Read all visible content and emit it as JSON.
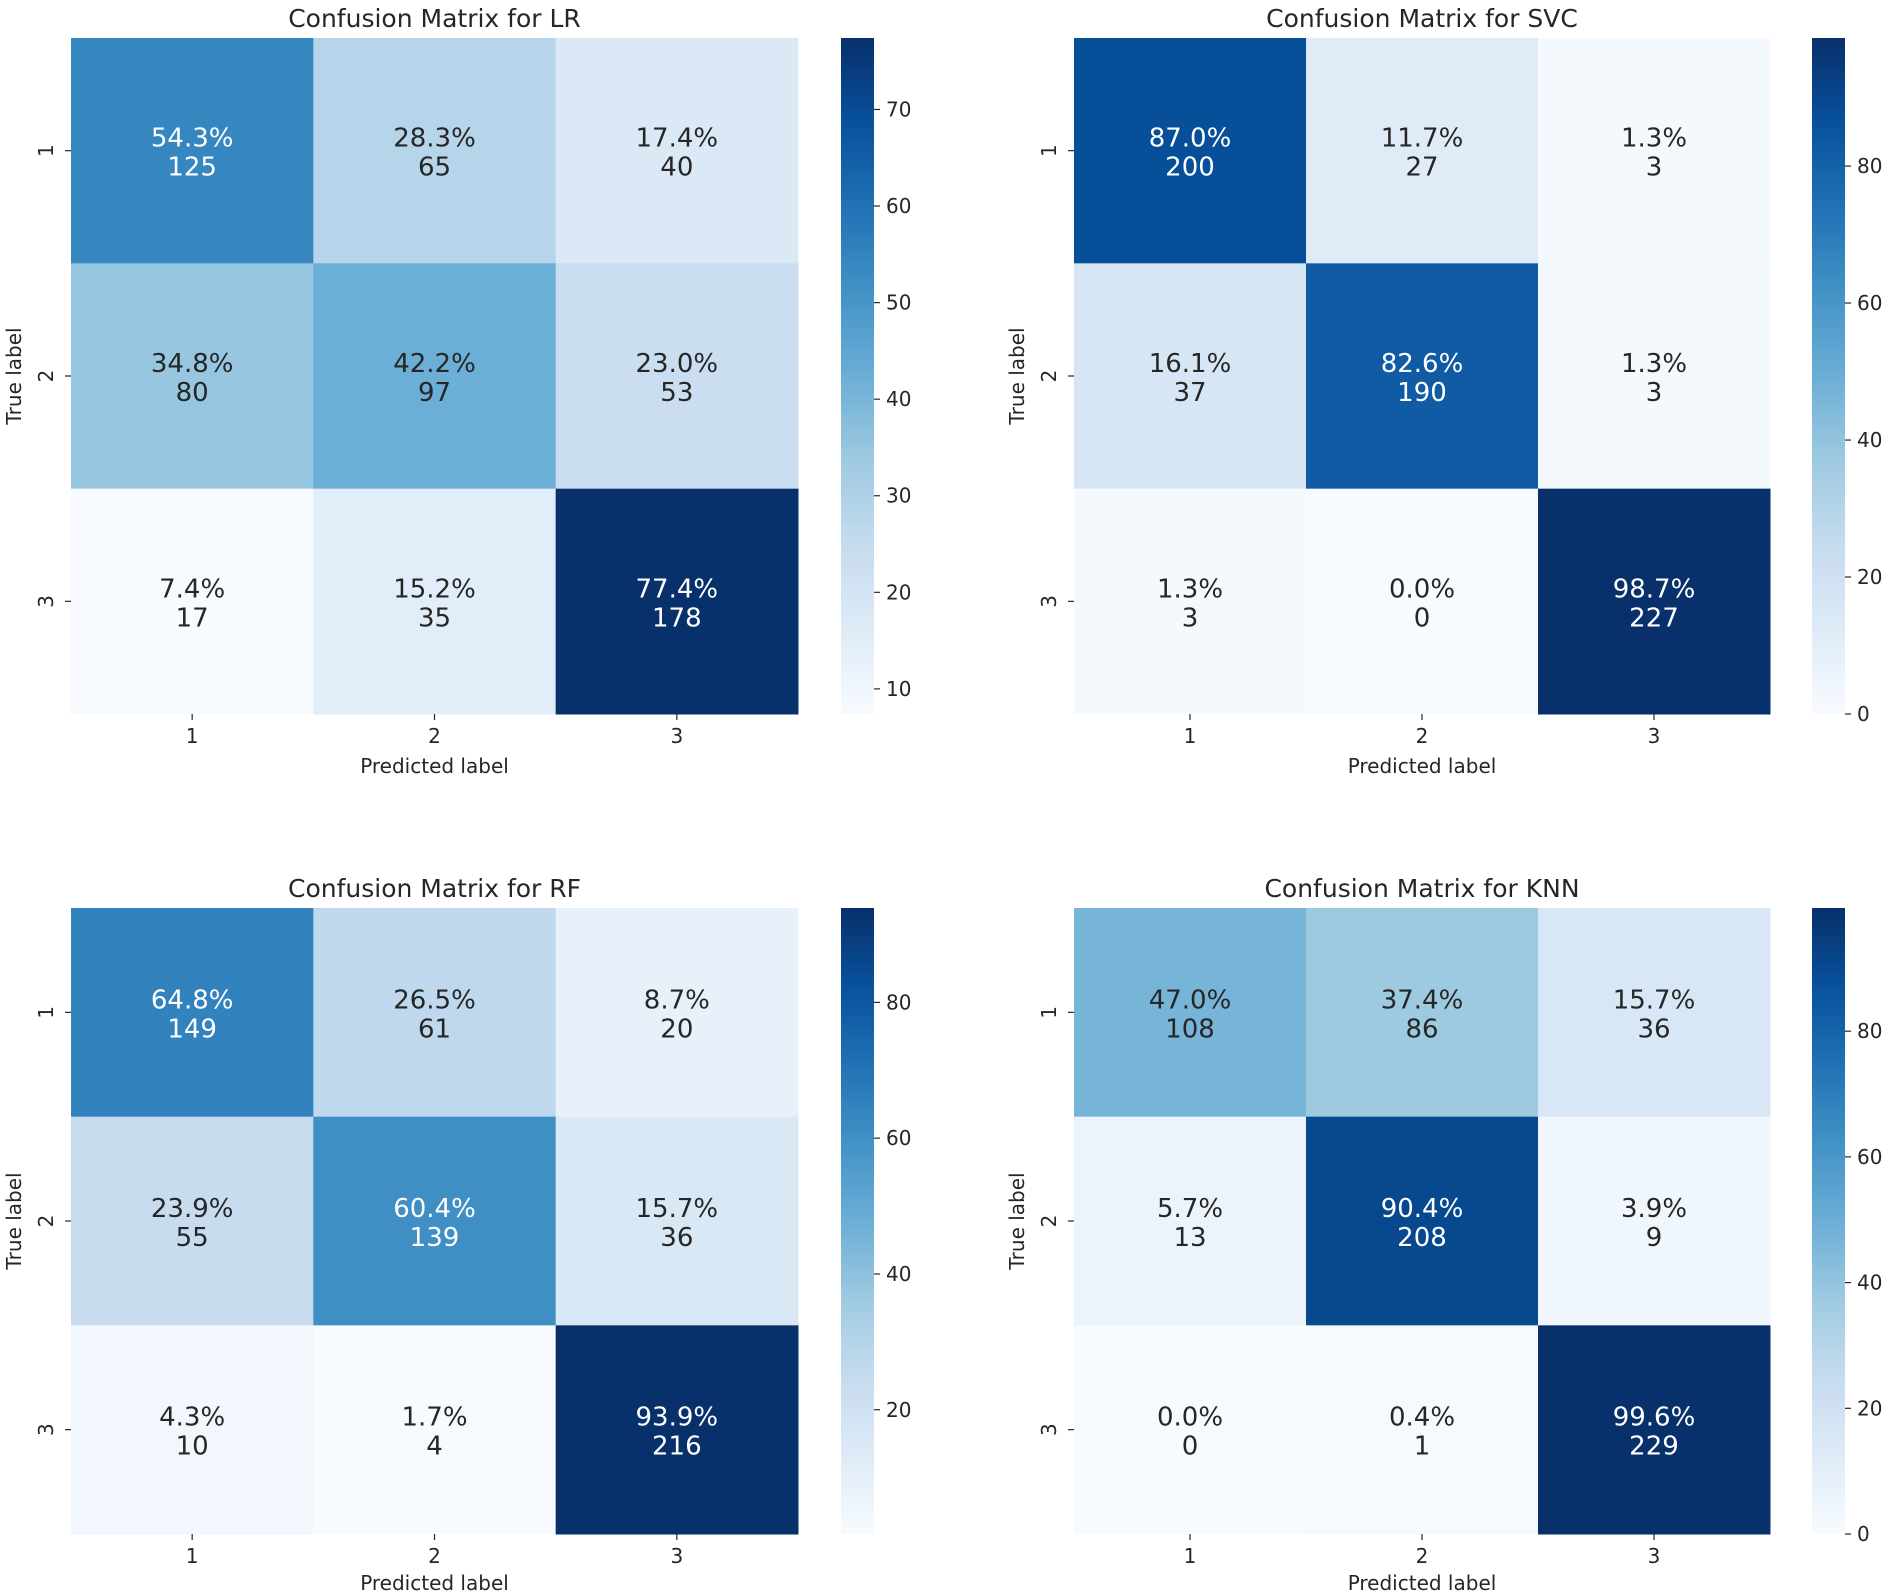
{
  "chart_data": [
    {
      "type": "heatmap",
      "title": "Confusion Matrix for LR",
      "xlabel": "Predicted label",
      "ylabel": "True label",
      "x_ticklabels": [
        "1",
        "2",
        "3"
      ],
      "y_ticklabels": [
        "1",
        "2",
        "3"
      ],
      "percent": [
        [
          54.3,
          28.3,
          17.4
        ],
        [
          34.8,
          42.2,
          23.0
        ],
        [
          7.4,
          15.2,
          77.4
        ]
      ],
      "counts": [
        [
          125,
          65,
          40
        ],
        [
          80,
          97,
          53
        ],
        [
          17,
          35,
          178
        ]
      ],
      "labels": [
        [
          "54.3%",
          "28.3%",
          "17.4%"
        ],
        [
          "34.8%",
          "42.2%",
          "23.0%"
        ],
        [
          "7.4%",
          "15.2%",
          "77.4%"
        ]
      ],
      "count_labels": [
        [
          "125",
          "65",
          "40"
        ],
        [
          "80",
          "97",
          "53"
        ],
        [
          "17",
          "35",
          "178"
        ]
      ],
      "colorbar_range": [
        7.4,
        77.4
      ],
      "colorbar_ticks": [
        10,
        20,
        30,
        40,
        50,
        60,
        70
      ],
      "colorbar_ticklabels": [
        "10",
        "20",
        "30",
        "40",
        "50",
        "60",
        "70"
      ],
      "colormap": "Blues"
    },
    {
      "type": "heatmap",
      "title": "Confusion Matrix for SVC",
      "xlabel": "Predicted label",
      "ylabel": "True label",
      "x_ticklabels": [
        "1",
        "2",
        "3"
      ],
      "y_ticklabels": [
        "1",
        "2",
        "3"
      ],
      "percent": [
        [
          87.0,
          11.7,
          1.3
        ],
        [
          16.1,
          82.6,
          1.3
        ],
        [
          1.3,
          0.0,
          98.7
        ]
      ],
      "counts": [
        [
          200,
          27,
          3
        ],
        [
          37,
          190,
          3
        ],
        [
          3,
          0,
          227
        ]
      ],
      "labels": [
        [
          "87.0%",
          "11.7%",
          "1.3%"
        ],
        [
          "16.1%",
          "82.6%",
          "1.3%"
        ],
        [
          "1.3%",
          "0.0%",
          "98.7%"
        ]
      ],
      "count_labels": [
        [
          "200",
          "27",
          "3"
        ],
        [
          "37",
          "190",
          "3"
        ],
        [
          "3",
          "0",
          "227"
        ]
      ],
      "colorbar_range": [
        0,
        98.7
      ],
      "colorbar_ticks": [
        0,
        20,
        40,
        60,
        80
      ],
      "colorbar_ticklabels": [
        "0",
        "20",
        "40",
        "60",
        "80"
      ],
      "colormap": "Blues"
    },
    {
      "type": "heatmap",
      "title": "Confusion Matrix for RF",
      "xlabel": "Predicted label",
      "ylabel": "True label",
      "x_ticklabels": [
        "1",
        "2",
        "3"
      ],
      "y_ticklabels": [
        "1",
        "2",
        "3"
      ],
      "percent": [
        [
          64.8,
          26.5,
          8.7
        ],
        [
          23.9,
          60.4,
          15.7
        ],
        [
          4.3,
          1.7,
          93.9
        ]
      ],
      "counts": [
        [
          149,
          61,
          20
        ],
        [
          55,
          139,
          36
        ],
        [
          10,
          4,
          216
        ]
      ],
      "labels": [
        [
          "64.8%",
          "26.5%",
          "8.7%"
        ],
        [
          "23.9%",
          "60.4%",
          "15.7%"
        ],
        [
          "4.3%",
          "1.7%",
          "93.9%"
        ]
      ],
      "count_labels": [
        [
          "149",
          "61",
          "20"
        ],
        [
          "55",
          "139",
          "36"
        ],
        [
          "10",
          "4",
          "216"
        ]
      ],
      "colorbar_range": [
        1.7,
        93.9
      ],
      "colorbar_ticks": [
        20,
        40,
        60,
        80
      ],
      "colorbar_ticklabels": [
        "20",
        "40",
        "60",
        "80"
      ],
      "colormap": "Blues"
    },
    {
      "type": "heatmap",
      "title": "Confusion Matrix for KNN",
      "xlabel": "Predicted label",
      "ylabel": "True label",
      "x_ticklabels": [
        "1",
        "2",
        "3"
      ],
      "y_ticklabels": [
        "1",
        "2",
        "3"
      ],
      "percent": [
        [
          47.0,
          37.4,
          15.7
        ],
        [
          5.7,
          90.4,
          3.9
        ],
        [
          0.0,
          0.4,
          99.6
        ]
      ],
      "counts": [
        [
          108,
          86,
          36
        ],
        [
          13,
          208,
          9
        ],
        [
          0,
          1,
          229
        ]
      ],
      "labels": [
        [
          "47.0%",
          "37.4%",
          "15.7%"
        ],
        [
          "5.7%",
          "90.4%",
          "3.9%"
        ],
        [
          "0.0%",
          "0.4%",
          "99.6%"
        ]
      ],
      "count_labels": [
        [
          "108",
          "86",
          "36"
        ],
        [
          "13",
          "208",
          "9"
        ],
        [
          "0",
          "1",
          "229"
        ]
      ],
      "colorbar_range": [
        0,
        99.6
      ],
      "colorbar_ticks": [
        0,
        20,
        40,
        60,
        80
      ],
      "colorbar_ticklabels": [
        "0",
        "20",
        "40",
        "60",
        "80"
      ],
      "colormap": "Blues"
    }
  ]
}
